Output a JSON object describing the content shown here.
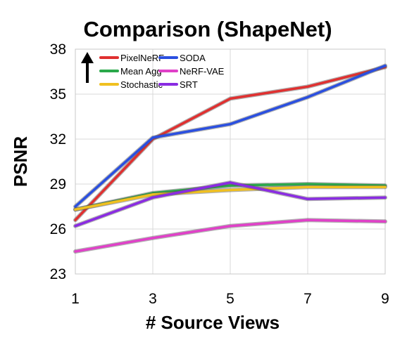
{
  "chart_data": {
    "type": "line",
    "title": "Comparison (ShapeNet)",
    "xlabel": "# Source Views",
    "ylabel": "PSNR",
    "x": [
      1,
      3,
      5,
      7,
      9
    ],
    "xticks": [
      "1",
      "3",
      "5",
      "7",
      "9"
    ],
    "yticks": [
      "23",
      "26",
      "29",
      "32",
      "35",
      "38"
    ],
    "xlim": [
      1,
      9
    ],
    "ylim": [
      23,
      38
    ],
    "grid": true,
    "legend_position": "top-left",
    "arrow_direction": "up",
    "series": [
      {
        "name": "PixelNeRF",
        "color": "#e03030",
        "values": [
          26.6,
          32.0,
          34.7,
          35.5,
          36.8
        ]
      },
      {
        "name": "SODA",
        "color": "#2a4fe0",
        "values": [
          27.5,
          32.1,
          33.0,
          34.8,
          36.9
        ]
      },
      {
        "name": "Mean Agg",
        "color": "#2aa84a",
        "values": [
          27.3,
          28.4,
          28.9,
          29.0,
          28.9
        ]
      },
      {
        "name": "NeRF-VAE",
        "color": "#e040c8",
        "values": [
          24.5,
          25.4,
          26.2,
          26.6,
          26.5
        ]
      },
      {
        "name": "Stochastic",
        "color": "#f0c020",
        "values": [
          27.3,
          28.3,
          28.6,
          28.8,
          28.8
        ]
      },
      {
        "name": "SRT",
        "color": "#8a2be2",
        "values": [
          26.2,
          28.1,
          29.1,
          28.0,
          28.1
        ]
      }
    ]
  }
}
